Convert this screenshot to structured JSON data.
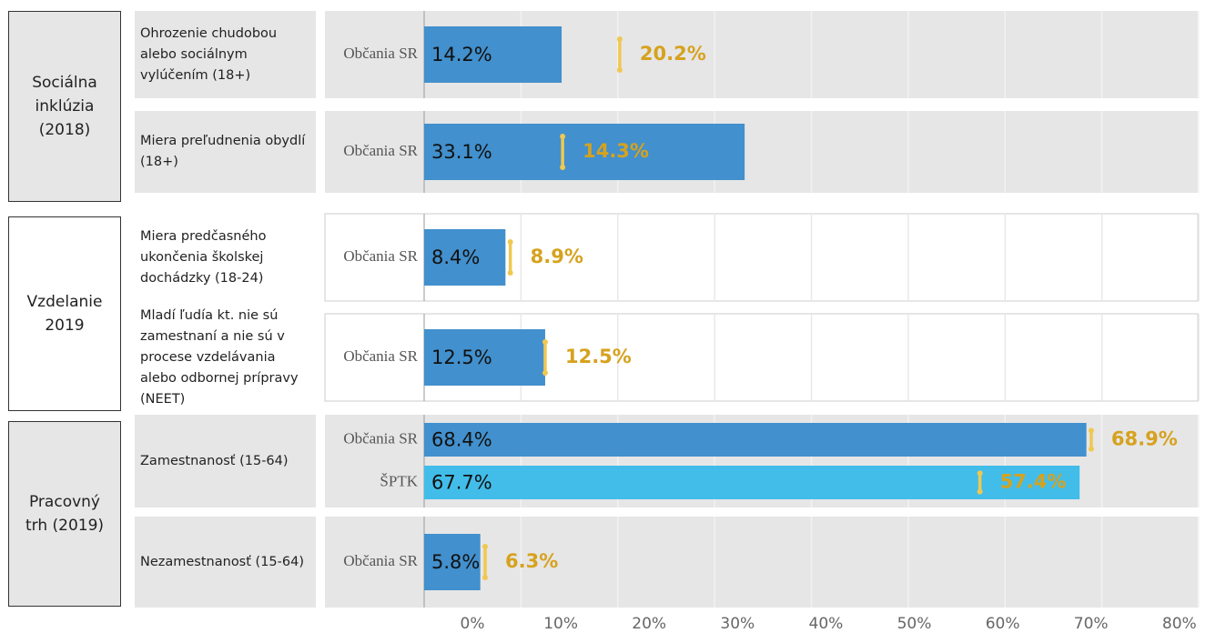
{
  "chart_data": {
    "type": "bar",
    "groups": [
      {
        "label": "Sociálna inklúzia (2018)",
        "indicators": [
          {
            "label": "Ohrozenie chudobou alebo sociálnym vylúčením (18+)",
            "bars": [
              {
                "name": "Občania SR",
                "value": 14.2,
                "value_label": "14.2%",
                "marker": 20.2,
                "marker_label": "20.2%"
              }
            ]
          },
          {
            "label": "Miera preľudnenia obydlí (18+)",
            "bars": [
              {
                "name": "Občania SR",
                "value": 33.1,
                "value_label": "33.1%",
                "marker": 14.3,
                "marker_label": "14.3%"
              }
            ]
          }
        ]
      },
      {
        "label": "Vzdelanie 2019",
        "indicators": [
          {
            "label": "Miera predčasného ukončenia školskej dochádzky (18-24)",
            "bars": [
              {
                "name": "Občania SR",
                "value": 8.4,
                "value_label": "8.4%",
                "marker": 8.9,
                "marker_label": "8.9%"
              }
            ]
          },
          {
            "label": "Mladí ľudía kt. nie sú zamestnaní a nie sú v procese vzdelávania alebo odbornej prípravy (NEET)",
            "bars": [
              {
                "name": "Občania SR",
                "value": 12.5,
                "value_label": "12.5%",
                "marker": 12.5,
                "marker_label": "12.5%"
              }
            ]
          }
        ]
      },
      {
        "label": "Pracovný trh (2019)",
        "indicators": [
          {
            "label": "Zamestnanosť (15-64)",
            "bars": [
              {
                "name": "Občania SR",
                "value": 68.4,
                "value_label": "68.4%",
                "marker": 68.9,
                "marker_label": "68.9%"
              },
              {
                "name": "ŠPTK",
                "value": 67.7,
                "value_label": "67.7%",
                "marker": 57.4,
                "marker_label": "57.4%"
              }
            ]
          },
          {
            "label": "Nezamestnanosť (15-64)",
            "bars": [
              {
                "name": "Občania SR",
                "value": 5.8,
                "value_label": "5.8%",
                "marker": 6.3,
                "marker_label": "6.3%"
              }
            ]
          }
        ]
      }
    ],
    "bar_colors": [
      "#4290cd",
      "#42bde9"
    ],
    "marker_color": "#f0c850",
    "xlim": [
      0,
      80
    ],
    "xticks": [
      {
        "value": 0,
        "label": "0%"
      },
      {
        "value": 10,
        "label": "10%"
      },
      {
        "value": 20,
        "label": "20%"
      },
      {
        "value": 30,
        "label": "30%"
      },
      {
        "value": 40,
        "label": "40%"
      },
      {
        "value": 50,
        "label": "50%"
      },
      {
        "value": 60,
        "label": "60%"
      },
      {
        "value": 70,
        "label": "70%"
      },
      {
        "value": 80,
        "label": "80%"
      }
    ]
  }
}
